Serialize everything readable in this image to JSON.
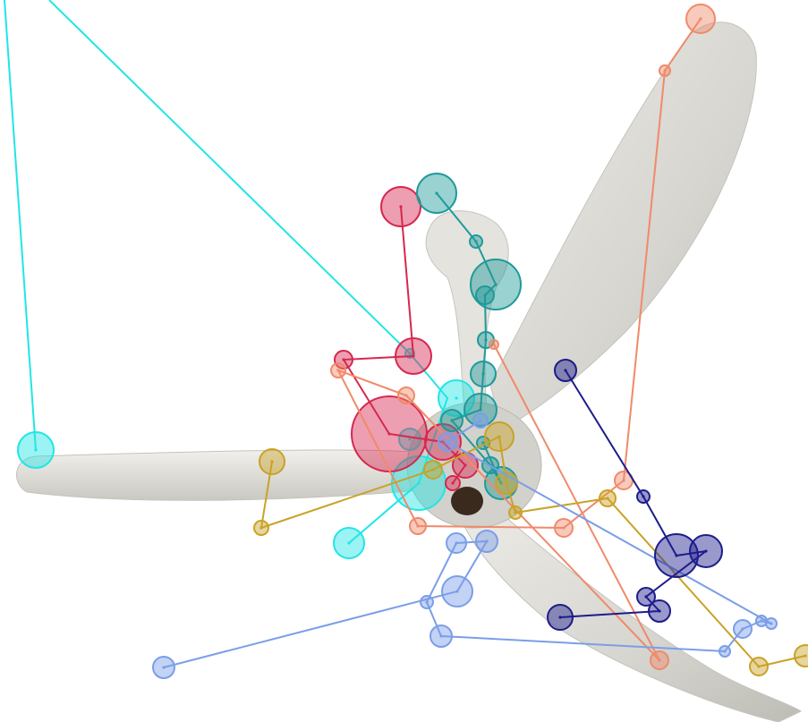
{
  "scene": {
    "subject": "ceiling-fan-photo",
    "background_color": "#ffffff",
    "fan_body_color": "#d9d8d2"
  },
  "overlay": {
    "series": [
      {
        "id": "cyan",
        "color": "#22e5e5"
      },
      {
        "id": "crimson",
        "color": "#d6284f"
      },
      {
        "id": "teal",
        "color": "#1f9a9a"
      },
      {
        "id": "salmon",
        "color": "#f08a6a"
      },
      {
        "id": "gold",
        "color": "#c9a227"
      },
      {
        "id": "cornflower",
        "color": "#7b9ee8"
      },
      {
        "id": "navy",
        "color": "#1c1c8c"
      }
    ]
  }
}
